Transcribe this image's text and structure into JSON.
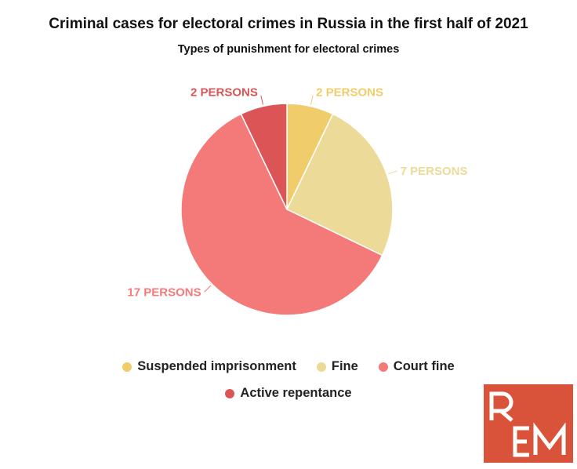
{
  "chart_data": {
    "type": "pie",
    "title": "Criminal cases for electoral crimes in Russia in the first half of 2021",
    "subtitle": "Types of punishment for electoral crimes",
    "legend_position": "bottom",
    "slices": [
      {
        "name": "Suspended imprisonment",
        "value": 2,
        "label": "2 PERSONS",
        "color": "#f0cd6a"
      },
      {
        "name": "Fine",
        "value": 7,
        "label": "7 PERSONS",
        "color": "#ecdb98"
      },
      {
        "name": "Court fine",
        "value": 17,
        "label": "17 PERSONS",
        "color": "#f47a7a"
      },
      {
        "name": "Active repentance",
        "value": 2,
        "label": "2 PERSONS",
        "color": "#db5556"
      }
    ]
  },
  "logo": {
    "text": "REM"
  }
}
